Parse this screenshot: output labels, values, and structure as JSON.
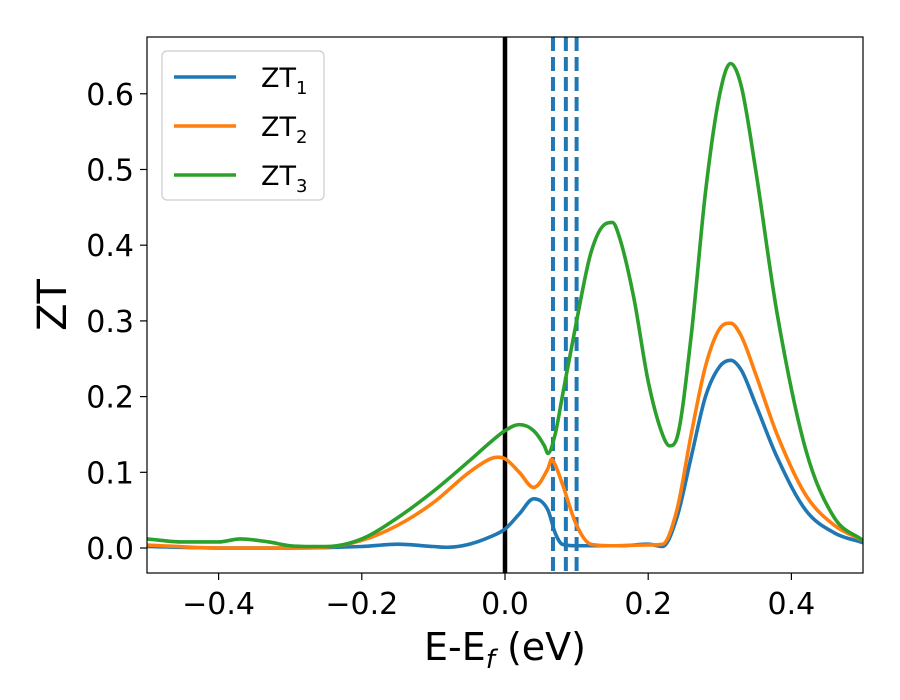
{
  "chart_data": {
    "type": "line",
    "xlabel": "E-E_f (eV)",
    "xlabel_main": "E-E",
    "xlabel_sub": "f",
    "xlabel_unit": " (eV)",
    "ylabel": "ZT",
    "xlim": [
      -0.5,
      0.5
    ],
    "ylim": [
      -0.033,
      0.675
    ],
    "xticks": [
      -0.4,
      -0.2,
      0.0,
      0.2,
      0.4
    ],
    "xtick_labels": [
      "−0.4",
      "−0.2",
      "0.0",
      "0.2",
      "0.4"
    ],
    "yticks": [
      0.0,
      0.1,
      0.2,
      0.3,
      0.4,
      0.5,
      0.6
    ],
    "ytick_labels": [
      "0.0",
      "0.1",
      "0.2",
      "0.3",
      "0.4",
      "0.5",
      "0.6"
    ],
    "grid": false,
    "legend_position": "top-left",
    "vertical_lines": [
      {
        "x": 0.0,
        "color": "#000000",
        "style": "solid"
      },
      {
        "x": 0.067,
        "color": "#1f77b4",
        "style": "dashed"
      },
      {
        "x": 0.085,
        "color": "#1f77b4",
        "style": "dashed"
      },
      {
        "x": 0.1,
        "color": "#1f77b4",
        "style": "dashed"
      }
    ],
    "series": [
      {
        "name": "ZT_1",
        "label_main": "ZT",
        "label_sub": "1",
        "color": "#1f77b4",
        "x": [
          -0.5,
          -0.4,
          -0.3,
          -0.2,
          -0.15,
          -0.1,
          -0.08,
          -0.05,
          -0.02,
          0.0,
          0.02,
          0.04,
          0.06,
          0.07,
          0.08,
          0.1,
          0.13,
          0.16,
          0.2,
          0.22,
          0.24,
          0.26,
          0.28,
          0.3,
          0.315,
          0.33,
          0.35,
          0.38,
          0.42,
          0.46,
          0.5
        ],
        "y": [
          0.002,
          0.0,
          0.0,
          0.002,
          0.005,
          0.002,
          0.001,
          0.005,
          0.015,
          0.025,
          0.045,
          0.065,
          0.05,
          0.02,
          0.005,
          0.003,
          0.003,
          0.003,
          0.005,
          0.002,
          0.04,
          0.12,
          0.2,
          0.24,
          0.248,
          0.235,
          0.19,
          0.12,
          0.05,
          0.02,
          0.007
        ]
      },
      {
        "name": "ZT_2",
        "label_main": "ZT",
        "label_sub": "2",
        "color": "#ff7f0e",
        "x": [
          -0.5,
          -0.4,
          -0.3,
          -0.25,
          -0.2,
          -0.15,
          -0.1,
          -0.05,
          -0.02,
          -0.01,
          0.0,
          0.02,
          0.04,
          0.06,
          0.065,
          0.07,
          0.08,
          0.1,
          0.12,
          0.15,
          0.2,
          0.22,
          0.24,
          0.26,
          0.28,
          0.3,
          0.315,
          0.33,
          0.35,
          0.38,
          0.42,
          0.46,
          0.5
        ],
        "y": [
          0.004,
          0.0,
          0.0,
          0.001,
          0.01,
          0.03,
          0.06,
          0.1,
          0.118,
          0.12,
          0.118,
          0.1,
          0.08,
          0.105,
          0.117,
          0.11,
          0.085,
          0.03,
          0.005,
          0.003,
          0.004,
          0.005,
          0.05,
          0.15,
          0.24,
          0.29,
          0.297,
          0.28,
          0.23,
          0.15,
          0.07,
          0.03,
          0.01
        ]
      },
      {
        "name": "ZT_3",
        "label_main": "ZT",
        "label_sub": "3",
        "color": "#2ca02c",
        "x": [
          -0.5,
          -0.45,
          -0.4,
          -0.37,
          -0.33,
          -0.3,
          -0.27,
          -0.25,
          -0.2,
          -0.15,
          -0.1,
          -0.05,
          -0.02,
          0.0,
          0.02,
          0.04,
          0.055,
          0.06,
          0.07,
          0.08,
          0.1,
          0.12,
          0.14,
          0.15,
          0.16,
          0.18,
          0.2,
          0.22,
          0.23,
          0.24,
          0.26,
          0.28,
          0.3,
          0.315,
          0.33,
          0.35,
          0.38,
          0.42,
          0.46,
          0.5
        ],
        "y": [
          0.012,
          0.008,
          0.008,
          0.012,
          0.008,
          0.003,
          0.002,
          0.002,
          0.012,
          0.04,
          0.075,
          0.115,
          0.14,
          0.155,
          0.163,
          0.155,
          0.135,
          0.125,
          0.15,
          0.2,
          0.3,
          0.39,
          0.428,
          0.43,
          0.41,
          0.33,
          0.22,
          0.15,
          0.135,
          0.145,
          0.28,
          0.47,
          0.6,
          0.64,
          0.61,
          0.5,
          0.31,
          0.13,
          0.04,
          0.01
        ]
      }
    ]
  }
}
